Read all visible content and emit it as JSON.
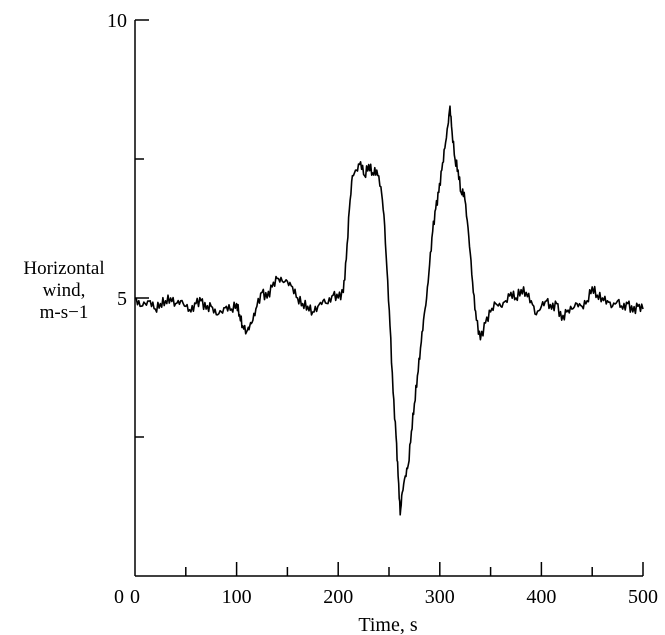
{
  "chart_data": {
    "type": "line",
    "title": "",
    "xlabel": "Time, s",
    "ylabel_lines": [
      "Horizontal",
      "wind,",
      "m-s−1"
    ],
    "xlim": [
      0,
      500
    ],
    "ylim": [
      0,
      10
    ],
    "x_ticks": [
      0,
      100,
      200,
      300,
      400,
      500
    ],
    "x_tick_labels": [
      "0",
      "100",
      "200",
      "300",
      "400",
      "500"
    ],
    "x_minor_ticks": [
      50,
      150,
      250,
      350,
      450
    ],
    "y_ticks": [
      0,
      5,
      10
    ],
    "y_tick_labels": [
      "0",
      "5",
      "10"
    ],
    "y_minor_ticks": [
      2.5,
      7.5
    ],
    "grid": false,
    "line_color": "#000000",
    "series": [
      {
        "x": [
          0,
          5,
          10,
          15,
          20,
          25,
          30,
          35,
          40,
          45,
          50,
          55,
          60,
          65,
          70,
          75,
          80,
          85,
          90,
          95,
          100,
          103,
          106,
          110,
          113,
          116,
          120,
          125,
          130,
          135,
          140,
          145,
          150,
          155,
          160,
          165,
          170,
          175,
          180,
          185,
          190,
          195,
          200,
          205,
          208,
          211,
          214,
          218,
          222,
          226,
          230,
          234,
          238,
          242,
          245,
          248,
          251,
          254,
          257,
          259,
          261,
          263,
          266,
          269,
          272,
          275,
          278,
          281,
          284,
          287,
          290,
          293,
          296,
          299,
          302,
          305,
          308,
          310,
          312,
          315,
          318,
          321,
          324,
          327,
          330,
          333,
          336,
          340,
          345,
          350,
          355,
          360,
          365,
          370,
          375,
          380,
          385,
          390,
          395,
          400,
          405,
          410,
          415,
          420,
          425,
          430,
          435,
          440,
          445,
          450,
          455,
          460,
          465,
          470,
          475,
          480,
          485,
          490,
          495,
          500
        ],
        "y": [
          5.0,
          4.85,
          4.9,
          4.95,
          4.8,
          4.9,
          4.95,
          5.0,
          4.9,
          4.95,
          4.85,
          4.75,
          4.9,
          4.95,
          4.8,
          4.85,
          4.7,
          4.75,
          4.85,
          4.8,
          4.9,
          4.7,
          4.5,
          4.4,
          4.5,
          4.6,
          4.85,
          5.1,
          5.0,
          5.2,
          5.35,
          5.3,
          5.3,
          5.2,
          5.0,
          4.9,
          4.85,
          4.75,
          4.85,
          4.95,
          4.9,
          5.05,
          5.0,
          5.1,
          5.7,
          6.6,
          7.2,
          7.3,
          7.45,
          7.2,
          7.4,
          7.25,
          7.3,
          7.0,
          6.5,
          5.5,
          4.5,
          3.3,
          2.5,
          1.8,
          1.1,
          1.5,
          1.8,
          2.0,
          2.6,
          3.1,
          3.6,
          4.1,
          4.6,
          5.0,
          5.6,
          6.2,
          6.6,
          6.9,
          7.3,
          7.7,
          8.1,
          8.45,
          8.0,
          7.5,
          7.3,
          6.9,
          6.9,
          6.4,
          5.8,
          5.1,
          4.6,
          4.25,
          4.55,
          4.75,
          4.9,
          4.85,
          4.95,
          5.1,
          5.0,
          5.15,
          5.1,
          4.95,
          4.7,
          4.85,
          4.95,
          4.8,
          4.9,
          4.6,
          4.75,
          4.8,
          4.9,
          4.85,
          4.95,
          5.2,
          5.05,
          5.0,
          4.95,
          4.85,
          4.95,
          4.8,
          4.9,
          4.75,
          4.85,
          4.8
        ]
      }
    ]
  }
}
